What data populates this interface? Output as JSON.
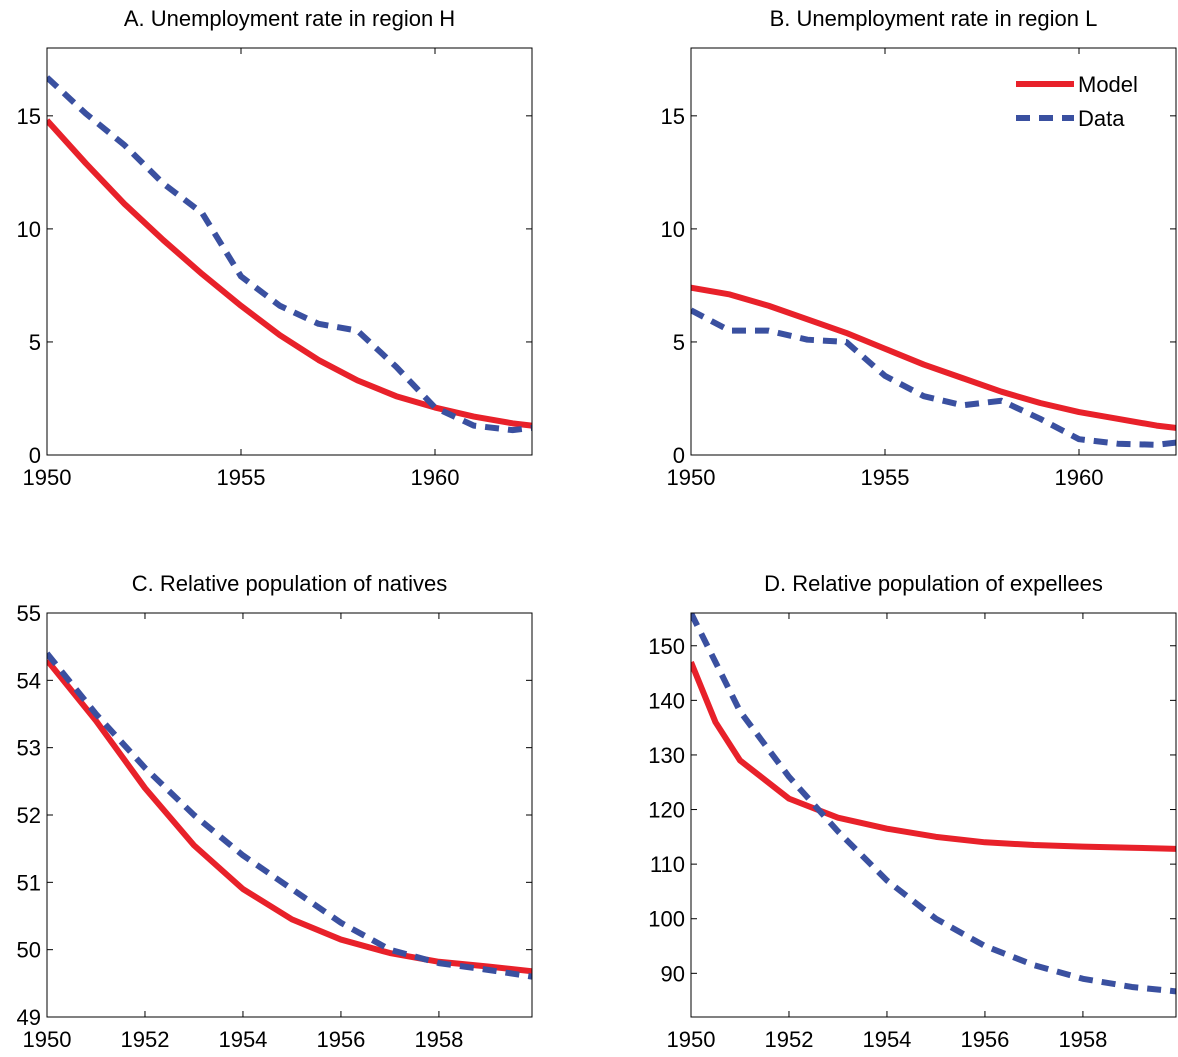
{
  "chart_data": [
    {
      "type": "line",
      "title": "A. Unemployment rate in region H",
      "x": [
        1950,
        1951,
        1952,
        1953,
        1954,
        1955,
        1956,
        1957,
        1958,
        1959,
        1960,
        1961,
        1962,
        1962.5
      ],
      "series": [
        {
          "name": "Model",
          "color": "#e8212a",
          "style": "solid",
          "values": [
            14.8,
            12.9,
            11.1,
            9.5,
            8.0,
            6.6,
            5.3,
            4.2,
            3.3,
            2.6,
            2.1,
            1.7,
            1.4,
            1.3
          ]
        },
        {
          "name": "Data",
          "color": "#3a50a0",
          "style": "dashed",
          "values": [
            16.7,
            15.1,
            13.7,
            12.0,
            10.7,
            7.9,
            6.6,
            5.8,
            5.5,
            3.9,
            2.1,
            1.3,
            1.1,
            1.2
          ]
        }
      ],
      "xlim": [
        1950,
        1962.5
      ],
      "xticks": [
        1950,
        1955,
        1960
      ],
      "ylim": [
        0,
        18
      ],
      "yticks": [
        0,
        5,
        10,
        15
      ]
    },
    {
      "type": "line",
      "title": "B. Unemployment rate in region L",
      "x": [
        1950,
        1951,
        1952,
        1953,
        1954,
        1955,
        1956,
        1957,
        1958,
        1959,
        1960,
        1961,
        1962,
        1962.5
      ],
      "series": [
        {
          "name": "Model",
          "color": "#e8212a",
          "style": "solid",
          "values": [
            7.4,
            7.1,
            6.6,
            6.0,
            5.4,
            4.7,
            4.0,
            3.4,
            2.8,
            2.3,
            1.9,
            1.6,
            1.3,
            1.2
          ]
        },
        {
          "name": "Data",
          "color": "#3a50a0",
          "style": "dashed",
          "values": [
            6.4,
            5.5,
            5.5,
            5.1,
            5.0,
            3.5,
            2.6,
            2.2,
            2.4,
            1.6,
            0.7,
            0.5,
            0.45,
            0.55
          ]
        }
      ],
      "xlim": [
        1950,
        1962.5
      ],
      "xticks": [
        1950,
        1955,
        1960
      ],
      "ylim": [
        0,
        18
      ],
      "yticks": [
        0,
        5,
        10,
        15
      ],
      "legend": "upper right"
    },
    {
      "type": "line",
      "title": "C. Relative population of natives",
      "x": [
        1950,
        1951,
        1952,
        1953,
        1954,
        1955,
        1956,
        1957,
        1958,
        1959,
        1959.9
      ],
      "series": [
        {
          "name": "Model",
          "color": "#e8212a",
          "style": "solid",
          "values": [
            54.3,
            53.4,
            52.4,
            51.55,
            50.9,
            50.45,
            50.15,
            49.95,
            49.82,
            49.75,
            49.68
          ]
        },
        {
          "name": "Data",
          "color": "#3a50a0",
          "style": "dashed",
          "values": [
            54.4,
            53.5,
            52.7,
            52.0,
            51.4,
            50.9,
            50.4,
            50.0,
            49.8,
            49.7,
            49.6
          ]
        }
      ],
      "xlim": [
        1950,
        1959.9
      ],
      "xticks": [
        1950,
        1952,
        1954,
        1956,
        1958
      ],
      "ylim": [
        49,
        55
      ],
      "yticks": [
        49,
        50,
        51,
        52,
        53,
        54,
        55
      ]
    },
    {
      "type": "line",
      "title": "D. Relative population of expellees",
      "x": [
        1950,
        1950.5,
        1951,
        1952,
        1953,
        1954,
        1955,
        1956,
        1957,
        1958,
        1959,
        1959.9
      ],
      "series": [
        {
          "name": "Model",
          "color": "#e8212a",
          "style": "solid",
          "values": [
            147,
            136,
            129,
            122,
            118.5,
            116.5,
            115,
            114,
            113.5,
            113.2,
            113,
            112.8
          ]
        },
        {
          "name": "Data",
          "color": "#3a50a0",
          "style": "dashed",
          "values": [
            156,
            147,
            138,
            126,
            116,
            107,
            100,
            95,
            91.5,
            89,
            87.5,
            86.7
          ]
        }
      ],
      "xlim": [
        1950,
        1959.9
      ],
      "xticks": [
        1950,
        1952,
        1954,
        1956,
        1958
      ],
      "ylim": [
        82,
        156
      ],
      "yticks": [
        90,
        100,
        110,
        120,
        130,
        140,
        150
      ]
    }
  ]
}
